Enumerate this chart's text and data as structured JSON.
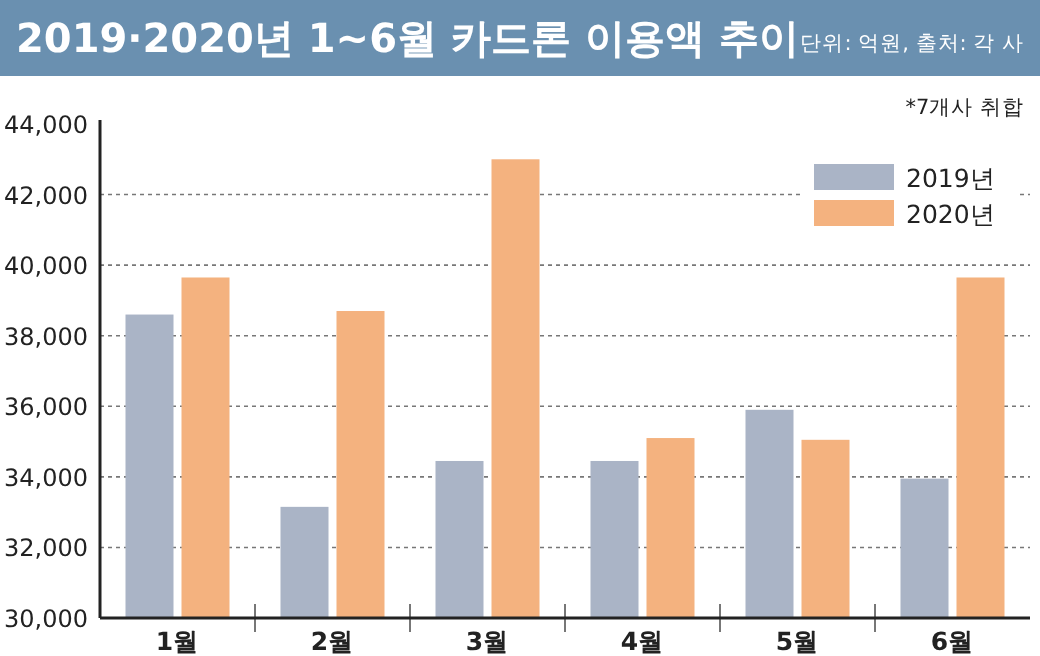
{
  "chart_data": {
    "type": "bar",
    "title": "2019·2020년 1~6월 카드론 이용액 추이",
    "subtitle": "단위: 억원, 출처: 각 사",
    "annotations": [
      "*7개사 취합"
    ],
    "categories": [
      "1월",
      "2월",
      "3월",
      "4월",
      "5월",
      "6월"
    ],
    "series": [
      {
        "name": "2019년",
        "color": "#aab4c6",
        "values": [
          38600,
          33150,
          34450,
          34450,
          35900,
          33950
        ]
      },
      {
        "name": "2020년",
        "color": "#f4b27f",
        "values": [
          39650,
          38700,
          43000,
          35100,
          35050,
          39650
        ]
      }
    ],
    "ylim": [
      30000,
      44000
    ],
    "yticks": [
      {
        "value": 30000,
        "label": "30,000"
      },
      {
        "value": 32000,
        "label": "32,000"
      },
      {
        "value": 34000,
        "label": "34,000"
      },
      {
        "value": 36000,
        "label": "36,000"
      },
      {
        "value": 38000,
        "label": "38,000"
      },
      {
        "value": 40000,
        "label": "40,000"
      },
      {
        "value": 42000,
        "label": "42,000"
      },
      {
        "value": 44000,
        "label": "44,000"
      }
    ],
    "grid": "y",
    "legend": "top right"
  }
}
